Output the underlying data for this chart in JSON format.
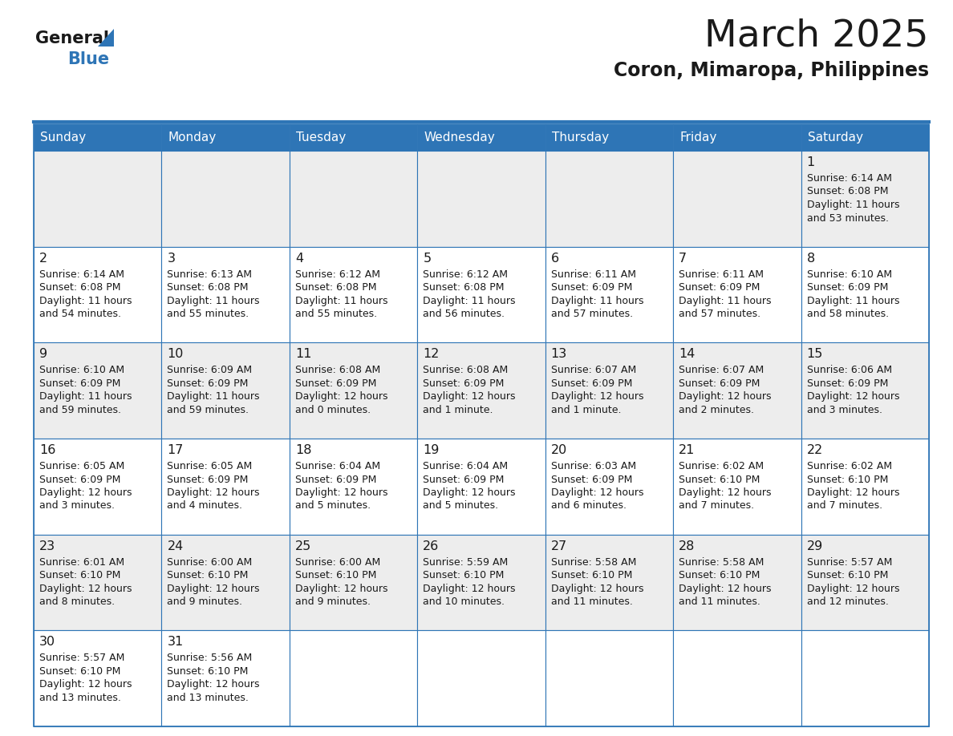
{
  "title": "March 2025",
  "subtitle": "Coron, Mimaropa, Philippines",
  "header_bg": "#2E75B6",
  "header_text": "#FFFFFF",
  "day_names": [
    "Sunday",
    "Monday",
    "Tuesday",
    "Wednesday",
    "Thursday",
    "Friday",
    "Saturday"
  ],
  "odd_row_bg": "#EDEDED",
  "even_row_bg": "#FFFFFF",
  "cell_border": "#2E75B6",
  "number_color": "#1A1A1A",
  "text_color": "#1A1A1A",
  "logo_general_color": "#1A1A1A",
  "logo_blue_color": "#2E75B6",
  "days": [
    {
      "date": 1,
      "row": 0,
      "col": 6,
      "sunrise": "6:14 AM",
      "sunset": "6:08 PM",
      "daylight_line1": "Daylight: 11 hours",
      "daylight_line2": "and 53 minutes."
    },
    {
      "date": 2,
      "row": 1,
      "col": 0,
      "sunrise": "6:14 AM",
      "sunset": "6:08 PM",
      "daylight_line1": "Daylight: 11 hours",
      "daylight_line2": "and 54 minutes."
    },
    {
      "date": 3,
      "row": 1,
      "col": 1,
      "sunrise": "6:13 AM",
      "sunset": "6:08 PM",
      "daylight_line1": "Daylight: 11 hours",
      "daylight_line2": "and 55 minutes."
    },
    {
      "date": 4,
      "row": 1,
      "col": 2,
      "sunrise": "6:12 AM",
      "sunset": "6:08 PM",
      "daylight_line1": "Daylight: 11 hours",
      "daylight_line2": "and 55 minutes."
    },
    {
      "date": 5,
      "row": 1,
      "col": 3,
      "sunrise": "6:12 AM",
      "sunset": "6:08 PM",
      "daylight_line1": "Daylight: 11 hours",
      "daylight_line2": "and 56 minutes."
    },
    {
      "date": 6,
      "row": 1,
      "col": 4,
      "sunrise": "6:11 AM",
      "sunset": "6:09 PM",
      "daylight_line1": "Daylight: 11 hours",
      "daylight_line2": "and 57 minutes."
    },
    {
      "date": 7,
      "row": 1,
      "col": 5,
      "sunrise": "6:11 AM",
      "sunset": "6:09 PM",
      "daylight_line1": "Daylight: 11 hours",
      "daylight_line2": "and 57 minutes."
    },
    {
      "date": 8,
      "row": 1,
      "col": 6,
      "sunrise": "6:10 AM",
      "sunset": "6:09 PM",
      "daylight_line1": "Daylight: 11 hours",
      "daylight_line2": "and 58 minutes."
    },
    {
      "date": 9,
      "row": 2,
      "col": 0,
      "sunrise": "6:10 AM",
      "sunset": "6:09 PM",
      "daylight_line1": "Daylight: 11 hours",
      "daylight_line2": "and 59 minutes."
    },
    {
      "date": 10,
      "row": 2,
      "col": 1,
      "sunrise": "6:09 AM",
      "sunset": "6:09 PM",
      "daylight_line1": "Daylight: 11 hours",
      "daylight_line2": "and 59 minutes."
    },
    {
      "date": 11,
      "row": 2,
      "col": 2,
      "sunrise": "6:08 AM",
      "sunset": "6:09 PM",
      "daylight_line1": "Daylight: 12 hours",
      "daylight_line2": "and 0 minutes."
    },
    {
      "date": 12,
      "row": 2,
      "col": 3,
      "sunrise": "6:08 AM",
      "sunset": "6:09 PM",
      "daylight_line1": "Daylight: 12 hours",
      "daylight_line2": "and 1 minute."
    },
    {
      "date": 13,
      "row": 2,
      "col": 4,
      "sunrise": "6:07 AM",
      "sunset": "6:09 PM",
      "daylight_line1": "Daylight: 12 hours",
      "daylight_line2": "and 1 minute."
    },
    {
      "date": 14,
      "row": 2,
      "col": 5,
      "sunrise": "6:07 AM",
      "sunset": "6:09 PM",
      "daylight_line1": "Daylight: 12 hours",
      "daylight_line2": "and 2 minutes."
    },
    {
      "date": 15,
      "row": 2,
      "col": 6,
      "sunrise": "6:06 AM",
      "sunset": "6:09 PM",
      "daylight_line1": "Daylight: 12 hours",
      "daylight_line2": "and 3 minutes."
    },
    {
      "date": 16,
      "row": 3,
      "col": 0,
      "sunrise": "6:05 AM",
      "sunset": "6:09 PM",
      "daylight_line1": "Daylight: 12 hours",
      "daylight_line2": "and 3 minutes."
    },
    {
      "date": 17,
      "row": 3,
      "col": 1,
      "sunrise": "6:05 AM",
      "sunset": "6:09 PM",
      "daylight_line1": "Daylight: 12 hours",
      "daylight_line2": "and 4 minutes."
    },
    {
      "date": 18,
      "row": 3,
      "col": 2,
      "sunrise": "6:04 AM",
      "sunset": "6:09 PM",
      "daylight_line1": "Daylight: 12 hours",
      "daylight_line2": "and 5 minutes."
    },
    {
      "date": 19,
      "row": 3,
      "col": 3,
      "sunrise": "6:04 AM",
      "sunset": "6:09 PM",
      "daylight_line1": "Daylight: 12 hours",
      "daylight_line2": "and 5 minutes."
    },
    {
      "date": 20,
      "row": 3,
      "col": 4,
      "sunrise": "6:03 AM",
      "sunset": "6:09 PM",
      "daylight_line1": "Daylight: 12 hours",
      "daylight_line2": "and 6 minutes."
    },
    {
      "date": 21,
      "row": 3,
      "col": 5,
      "sunrise": "6:02 AM",
      "sunset": "6:10 PM",
      "daylight_line1": "Daylight: 12 hours",
      "daylight_line2": "and 7 minutes."
    },
    {
      "date": 22,
      "row": 3,
      "col": 6,
      "sunrise": "6:02 AM",
      "sunset": "6:10 PM",
      "daylight_line1": "Daylight: 12 hours",
      "daylight_line2": "and 7 minutes."
    },
    {
      "date": 23,
      "row": 4,
      "col": 0,
      "sunrise": "6:01 AM",
      "sunset": "6:10 PM",
      "daylight_line1": "Daylight: 12 hours",
      "daylight_line2": "and 8 minutes."
    },
    {
      "date": 24,
      "row": 4,
      "col": 1,
      "sunrise": "6:00 AM",
      "sunset": "6:10 PM",
      "daylight_line1": "Daylight: 12 hours",
      "daylight_line2": "and 9 minutes."
    },
    {
      "date": 25,
      "row": 4,
      "col": 2,
      "sunrise": "6:00 AM",
      "sunset": "6:10 PM",
      "daylight_line1": "Daylight: 12 hours",
      "daylight_line2": "and 9 minutes."
    },
    {
      "date": 26,
      "row": 4,
      "col": 3,
      "sunrise": "5:59 AM",
      "sunset": "6:10 PM",
      "daylight_line1": "Daylight: 12 hours",
      "daylight_line2": "and 10 minutes."
    },
    {
      "date": 27,
      "row": 4,
      "col": 4,
      "sunrise": "5:58 AM",
      "sunset": "6:10 PM",
      "daylight_line1": "Daylight: 12 hours",
      "daylight_line2": "and 11 minutes."
    },
    {
      "date": 28,
      "row": 4,
      "col": 5,
      "sunrise": "5:58 AM",
      "sunset": "6:10 PM",
      "daylight_line1": "Daylight: 12 hours",
      "daylight_line2": "and 11 minutes."
    },
    {
      "date": 29,
      "row": 4,
      "col": 6,
      "sunrise": "5:57 AM",
      "sunset": "6:10 PM",
      "daylight_line1": "Daylight: 12 hours",
      "daylight_line2": "and 12 minutes."
    },
    {
      "date": 30,
      "row": 5,
      "col": 0,
      "sunrise": "5:57 AM",
      "sunset": "6:10 PM",
      "daylight_line1": "Daylight: 12 hours",
      "daylight_line2": "and 13 minutes."
    },
    {
      "date": 31,
      "row": 5,
      "col": 1,
      "sunrise": "5:56 AM",
      "sunset": "6:10 PM",
      "daylight_line1": "Daylight: 12 hours",
      "daylight_line2": "and 13 minutes."
    }
  ]
}
